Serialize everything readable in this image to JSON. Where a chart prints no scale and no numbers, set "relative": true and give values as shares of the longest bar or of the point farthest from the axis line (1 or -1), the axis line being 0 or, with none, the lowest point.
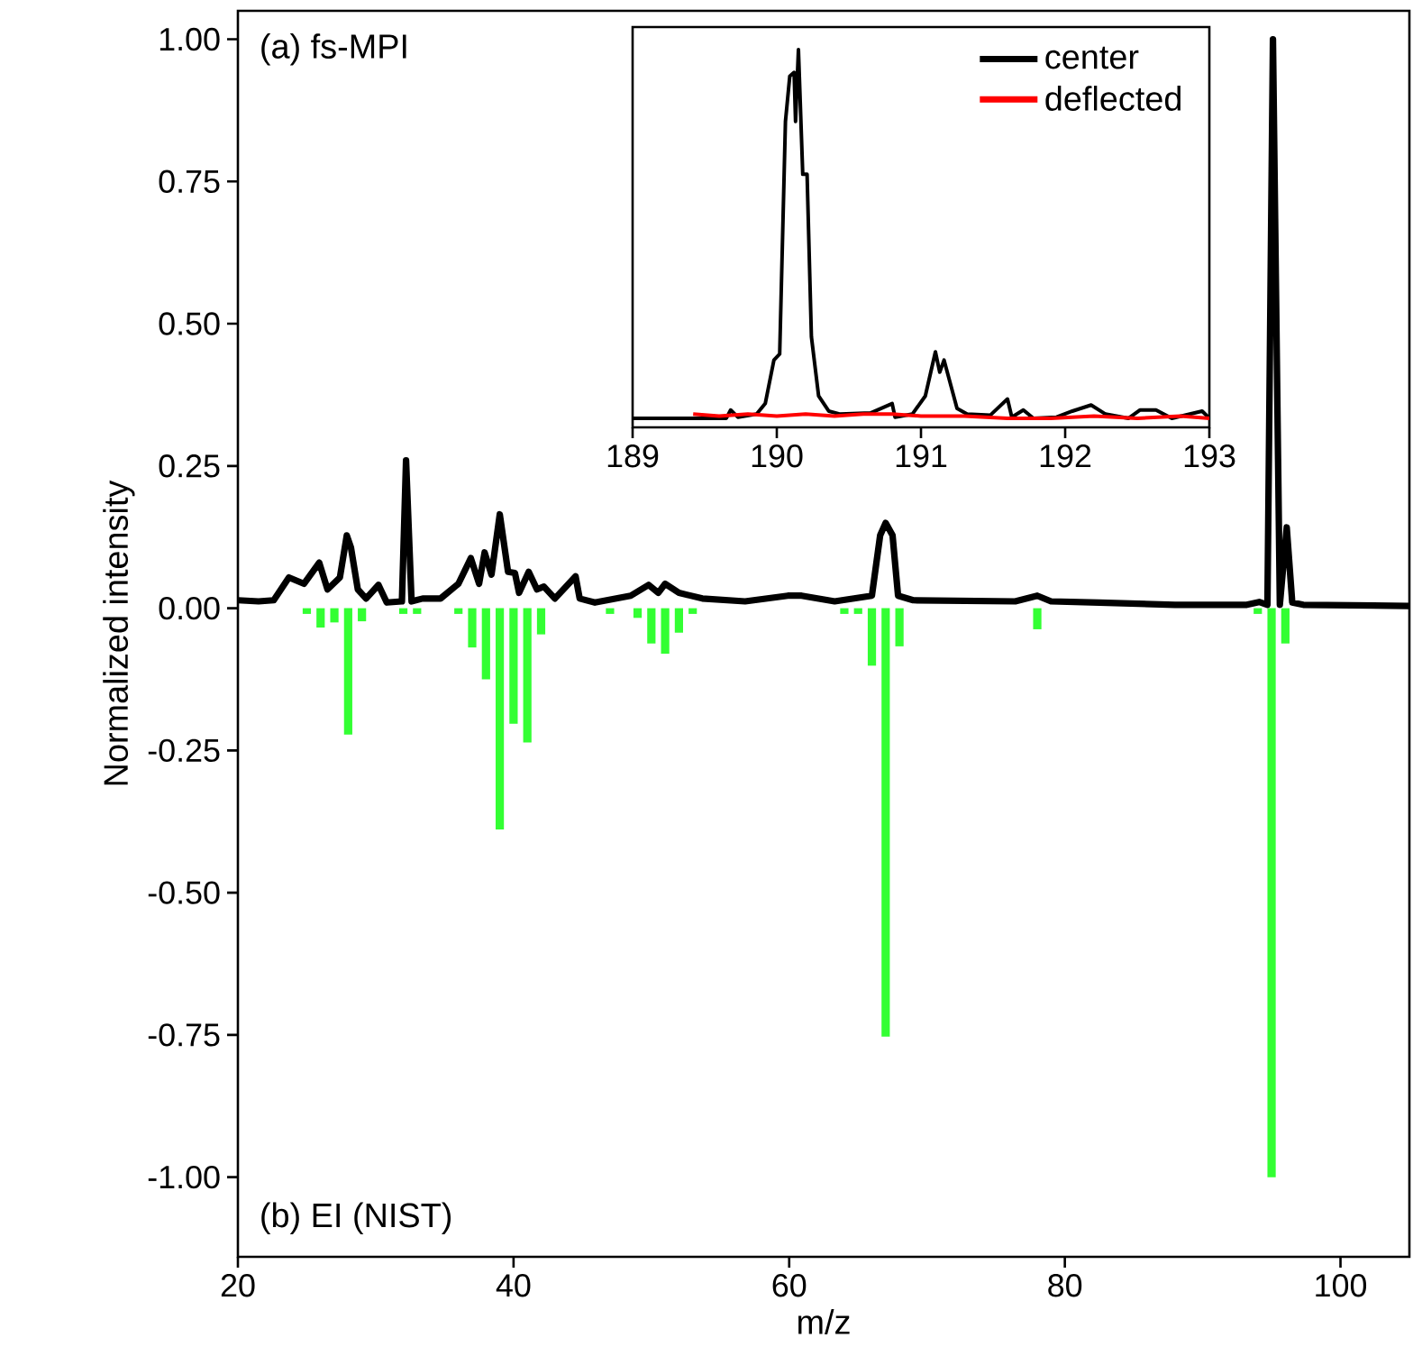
{
  "chart_data": [
    {
      "type": "line",
      "xlabel": "m/z",
      "ylabel": "Normalized intensity",
      "annotations": [
        "(a) fs-MPI",
        "(b) EI (NIST)"
      ],
      "xlim": [
        20,
        105
      ],
      "ylim": [
        -1.14,
        1.05
      ],
      "xticks": [
        20,
        40,
        60,
        80,
        100
      ],
      "yticks": [
        {
          "value": -1,
          "label": "-1.00"
        },
        {
          "value": -0.75,
          "label": "-0.75"
        },
        {
          "value": -0.5,
          "label": "-0.50"
        },
        {
          "value": -0.25,
          "label": "-0.25"
        },
        {
          "value": 0,
          "label": "0.00"
        },
        {
          "value": 0.25,
          "label": "0.25"
        },
        {
          "value": 0.5,
          "label": "0.50"
        },
        {
          "value": 0.75,
          "label": "0.75"
        },
        {
          "value": 1,
          "label": "1.00"
        }
      ],
      "series": [
        {
          "type": "bar",
          "color": "#33ff33",
          "x": [
            25,
            26,
            27,
            28,
            29,
            32,
            33,
            36,
            37,
            38,
            39,
            40,
            41,
            42,
            47,
            49,
            50,
            51,
            52,
            53,
            64,
            65,
            66,
            67,
            68,
            78,
            94,
            95,
            96
          ],
          "values": [
            -0.01,
            -0.034,
            -0.025,
            -0.222,
            -0.023,
            -0.01,
            -0.01,
            -0.01,
            -0.069,
            -0.125,
            -0.389,
            -0.203,
            -0.236,
            -0.046,
            -0.01,
            -0.017,
            -0.062,
            -0.08,
            -0.043,
            -0.01,
            -0.01,
            -0.01,
            -0.101,
            -0.753,
            -0.067,
            -0.037,
            -0.01,
            -1.0,
            -0.062
          ]
        },
        {
          "type": "line",
          "color": "#000000",
          "x": [
            20.0,
            21.5,
            22.6,
            23.7,
            24.8,
            25.9,
            26.5,
            27.4,
            27.9,
            28.2,
            28.7,
            29.3,
            30.2,
            30.8,
            31.9,
            32.2,
            32.6,
            33.4,
            34.7,
            36.0,
            36.9,
            37.5,
            37.9,
            38.4,
            39.0,
            39.6,
            40.1,
            40.4,
            41.1,
            41.7,
            42.2,
            43.0,
            44.5,
            44.8,
            45.9,
            48.5,
            49.8,
            50.5,
            51.0,
            52.0,
            53.7,
            56.8,
            59.9,
            60.9,
            63.3,
            66.0,
            66.6,
            67.0,
            67.5,
            67.9,
            69.0,
            76.4,
            78.0,
            79.0,
            82.5,
            88.0,
            93.2,
            94.1,
            94.7,
            95.1,
            95.6,
            96.1,
            96.5,
            97.3,
            105.0
          ],
          "values": [
            0.014,
            0.012,
            0.014,
            0.054,
            0.043,
            0.08,
            0.033,
            0.054,
            0.128,
            0.107,
            0.033,
            0.017,
            0.041,
            0.01,
            0.012,
            0.26,
            0.012,
            0.017,
            0.017,
            0.043,
            0.088,
            0.043,
            0.098,
            0.059,
            0.165,
            0.064,
            0.062,
            0.027,
            0.064,
            0.033,
            0.038,
            0.017,
            0.056,
            0.017,
            0.01,
            0.022,
            0.041,
            0.027,
            0.043,
            0.027,
            0.017,
            0.012,
            0.022,
            0.022,
            0.012,
            0.022,
            0.128,
            0.15,
            0.128,
            0.022,
            0.014,
            0.012,
            0.022,
            0.012,
            0.01,
            0.006,
            0.006,
            0.011,
            0.006,
            1.0,
            0.006,
            0.142,
            0.01,
            0.006,
            0.004
          ]
        }
      ]
    },
    {
      "type": "line",
      "relative": true,
      "tick_labels": "x",
      "legend": "top right",
      "xlim": [
        189,
        193
      ],
      "xticks": [
        189,
        190,
        191,
        192,
        193
      ],
      "series": [
        {
          "name": "center",
          "color": "#000000",
          "x": [
            189.0,
            189.65,
            189.68,
            189.73,
            189.86,
            189.92,
            189.98,
            190.02,
            190.06,
            190.09,
            190.12,
            190.13,
            190.15,
            190.18,
            190.21,
            190.24,
            190.29,
            190.36,
            190.44,
            190.65,
            190.8,
            190.82,
            190.94,
            191.03,
            191.1,
            191.13,
            191.16,
            191.25,
            191.32,
            191.48,
            191.6,
            191.63,
            191.71,
            191.78,
            191.94,
            192.05,
            192.18,
            192.28,
            192.44,
            192.52,
            192.63,
            192.74,
            192.95,
            193.0
          ],
          "values": [
            0.024,
            0.024,
            0.046,
            0.027,
            0.035,
            0.063,
            0.178,
            0.194,
            0.81,
            0.93,
            0.94,
            0.81,
            1.0,
            0.67,
            0.67,
            0.24,
            0.083,
            0.043,
            0.035,
            0.038,
            0.063,
            0.027,
            0.035,
            0.083,
            0.2,
            0.146,
            0.178,
            0.05,
            0.035,
            0.032,
            0.075,
            0.027,
            0.046,
            0.024,
            0.027,
            0.043,
            0.059,
            0.035,
            0.024,
            0.046,
            0.046,
            0.024,
            0.043,
            0.024
          ]
        },
        {
          "name": "deflected",
          "color": "#ff0000",
          "x": [
            189.42,
            189.6,
            189.8,
            190.0,
            190.2,
            190.4,
            190.6,
            190.8,
            191.0,
            191.3,
            191.6,
            191.9,
            192.2,
            192.5,
            192.8,
            193.0
          ],
          "values": [
            0.035,
            0.03,
            0.035,
            0.03,
            0.035,
            0.03,
            0.035,
            0.035,
            0.03,
            0.03,
            0.024,
            0.024,
            0.03,
            0.024,
            0.03,
            0.024
          ]
        }
      ]
    }
  ]
}
